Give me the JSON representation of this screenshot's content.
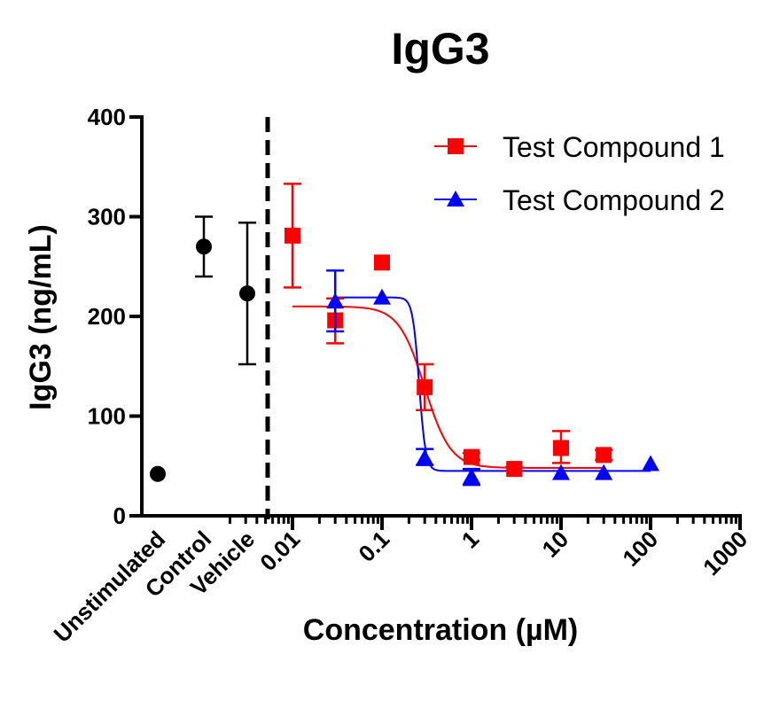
{
  "chart_data": {
    "type": "scatter",
    "title": "IgG3",
    "xlabel": "Concentration (µM)",
    "ylabel": "IgG3 (ng/mL)",
    "x_scale": "log",
    "xlim": [
      0.001,
      1000
    ],
    "ylim": [
      0,
      400
    ],
    "y_ticks": [
      "0",
      "100",
      "200",
      "300",
      "400"
    ],
    "x_ticks": [
      "0.01",
      "0.1",
      "1",
      "10",
      "100",
      "1000"
    ],
    "control_categories": [
      "Unstimulated",
      "Control",
      "Vehicle"
    ],
    "controls": [
      {
        "category": "Unstimulated",
        "y": 42,
        "err_low": 42,
        "err_high": 42
      },
      {
        "category": "Control",
        "y": 270,
        "err_low": 240,
        "err_high": 300
      },
      {
        "category": "Vehicle",
        "y": 223,
        "err_low": 152,
        "err_high": 294
      }
    ],
    "legend_position": "top-right",
    "series": [
      {
        "name": "Test Compound 1",
        "color": "#ff0000",
        "marker": "square",
        "points": [
          {
            "x": 0.01,
            "y": 281,
            "err_low": 229,
            "err_high": 333
          },
          {
            "x": 0.03,
            "y": 196,
            "err_low": 173,
            "err_high": 218
          },
          {
            "x": 0.1,
            "y": 254,
            "err_low": 254,
            "err_high": 254
          },
          {
            "x": 0.3,
            "y": 129,
            "err_low": 106,
            "err_high": 152
          },
          {
            "x": 1,
            "y": 59,
            "err_low": 56,
            "err_high": 63
          },
          {
            "x": 3,
            "y": 47,
            "err_low": 45,
            "err_high": 49
          },
          {
            "x": 10,
            "y": 68,
            "err_low": 53,
            "err_high": 85
          },
          {
            "x": 30,
            "y": 61,
            "err_low": 56,
            "err_high": 66
          }
        ],
        "fit": {
          "top": 210,
          "bottom": 48,
          "ec50": 0.3,
          "hill": 3
        }
      },
      {
        "name": "Test Compound 2",
        "color": "#0000ff",
        "marker": "triangle",
        "points": [
          {
            "x": 0.03,
            "y": 215,
            "err_low": 185,
            "err_high": 246
          },
          {
            "x": 0.1,
            "y": 219,
            "err_low": 219,
            "err_high": 219
          },
          {
            "x": 0.3,
            "y": 58,
            "err_low": 51,
            "err_high": 67
          },
          {
            "x": 1,
            "y": 39,
            "err_low": 31,
            "err_high": 47
          },
          {
            "x": 10,
            "y": 43,
            "err_low": 43,
            "err_high": 43
          },
          {
            "x": 30,
            "y": 43,
            "err_low": 43,
            "err_high": 43
          },
          {
            "x": 100,
            "y": 52,
            "err_low": 52,
            "err_high": 52
          }
        ],
        "fit": {
          "top": 219,
          "bottom": 45,
          "ec50": 0.26,
          "hill": 12
        }
      }
    ],
    "grid": false
  }
}
